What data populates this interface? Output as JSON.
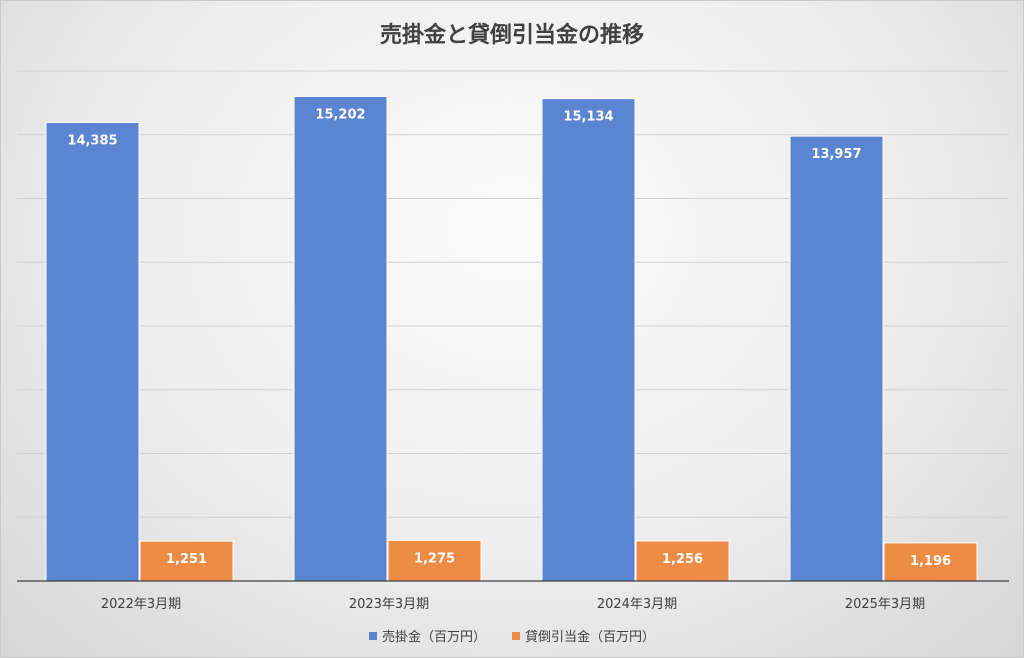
{
  "chart_data": {
    "type": "bar",
    "title": "売掛金と貸倒引当金の推移",
    "categories": [
      "2022年3月期",
      "2023年3月期",
      "2024年3月期",
      "2025年3月期"
    ],
    "series": [
      {
        "name": "売掛金（百万円）",
        "values": [
          14385,
          15202,
          15134,
          13957
        ],
        "labels": [
          "14,385",
          "15,202",
          "15,134",
          "13,957"
        ],
        "color": "#5B85D0",
        "label_color": "#ffffff"
      },
      {
        "name": "貸倒引当金（百万円）",
        "values": [
          1251,
          1275,
          1256,
          1196
        ],
        "labels": [
          "1,251",
          "1,275",
          "1,256",
          "1,196"
        ],
        "color": "#EE8C45",
        "label_color": "#ffffff"
      }
    ],
    "ylim": [
      0,
      16000
    ],
    "gridline_step": 2000,
    "grid": true,
    "legend_position": "bottom"
  }
}
